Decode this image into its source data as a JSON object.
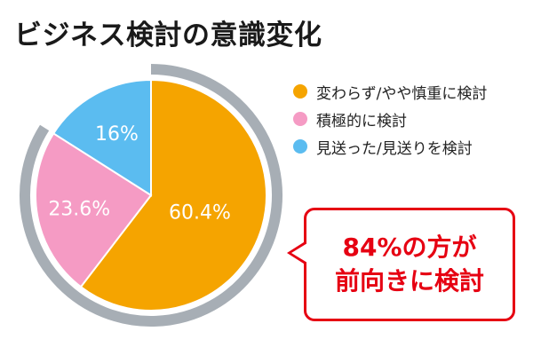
{
  "title": "ビジネス検討の意識変化",
  "chart_data": {
    "type": "pie",
    "categories": [
      "変わらず/やや慎重に検討",
      "積極的に検討",
      "見送った/見送りを検討"
    ],
    "values": [
      60.4,
      23.6,
      16
    ],
    "value_labels": [
      "60.4%",
      "23.6%",
      "16%"
    ],
    "colors": [
      "#f5a400",
      "#f59bc4",
      "#5bbcf0"
    ],
    "ring_color": "#a7aeb5",
    "legend": "right"
  },
  "legend": [
    {
      "label": "変わらず/やや慎重に検討",
      "color": "#f5a400"
    },
    {
      "label": "積極的に検討",
      "color": "#f59bc4"
    },
    {
      "label": "見送った/見送りを検討",
      "color": "#5bbcf0"
    }
  ],
  "callout": {
    "line1": "84%の方が",
    "line2": "前向きに検討",
    "color": "#e60012"
  }
}
